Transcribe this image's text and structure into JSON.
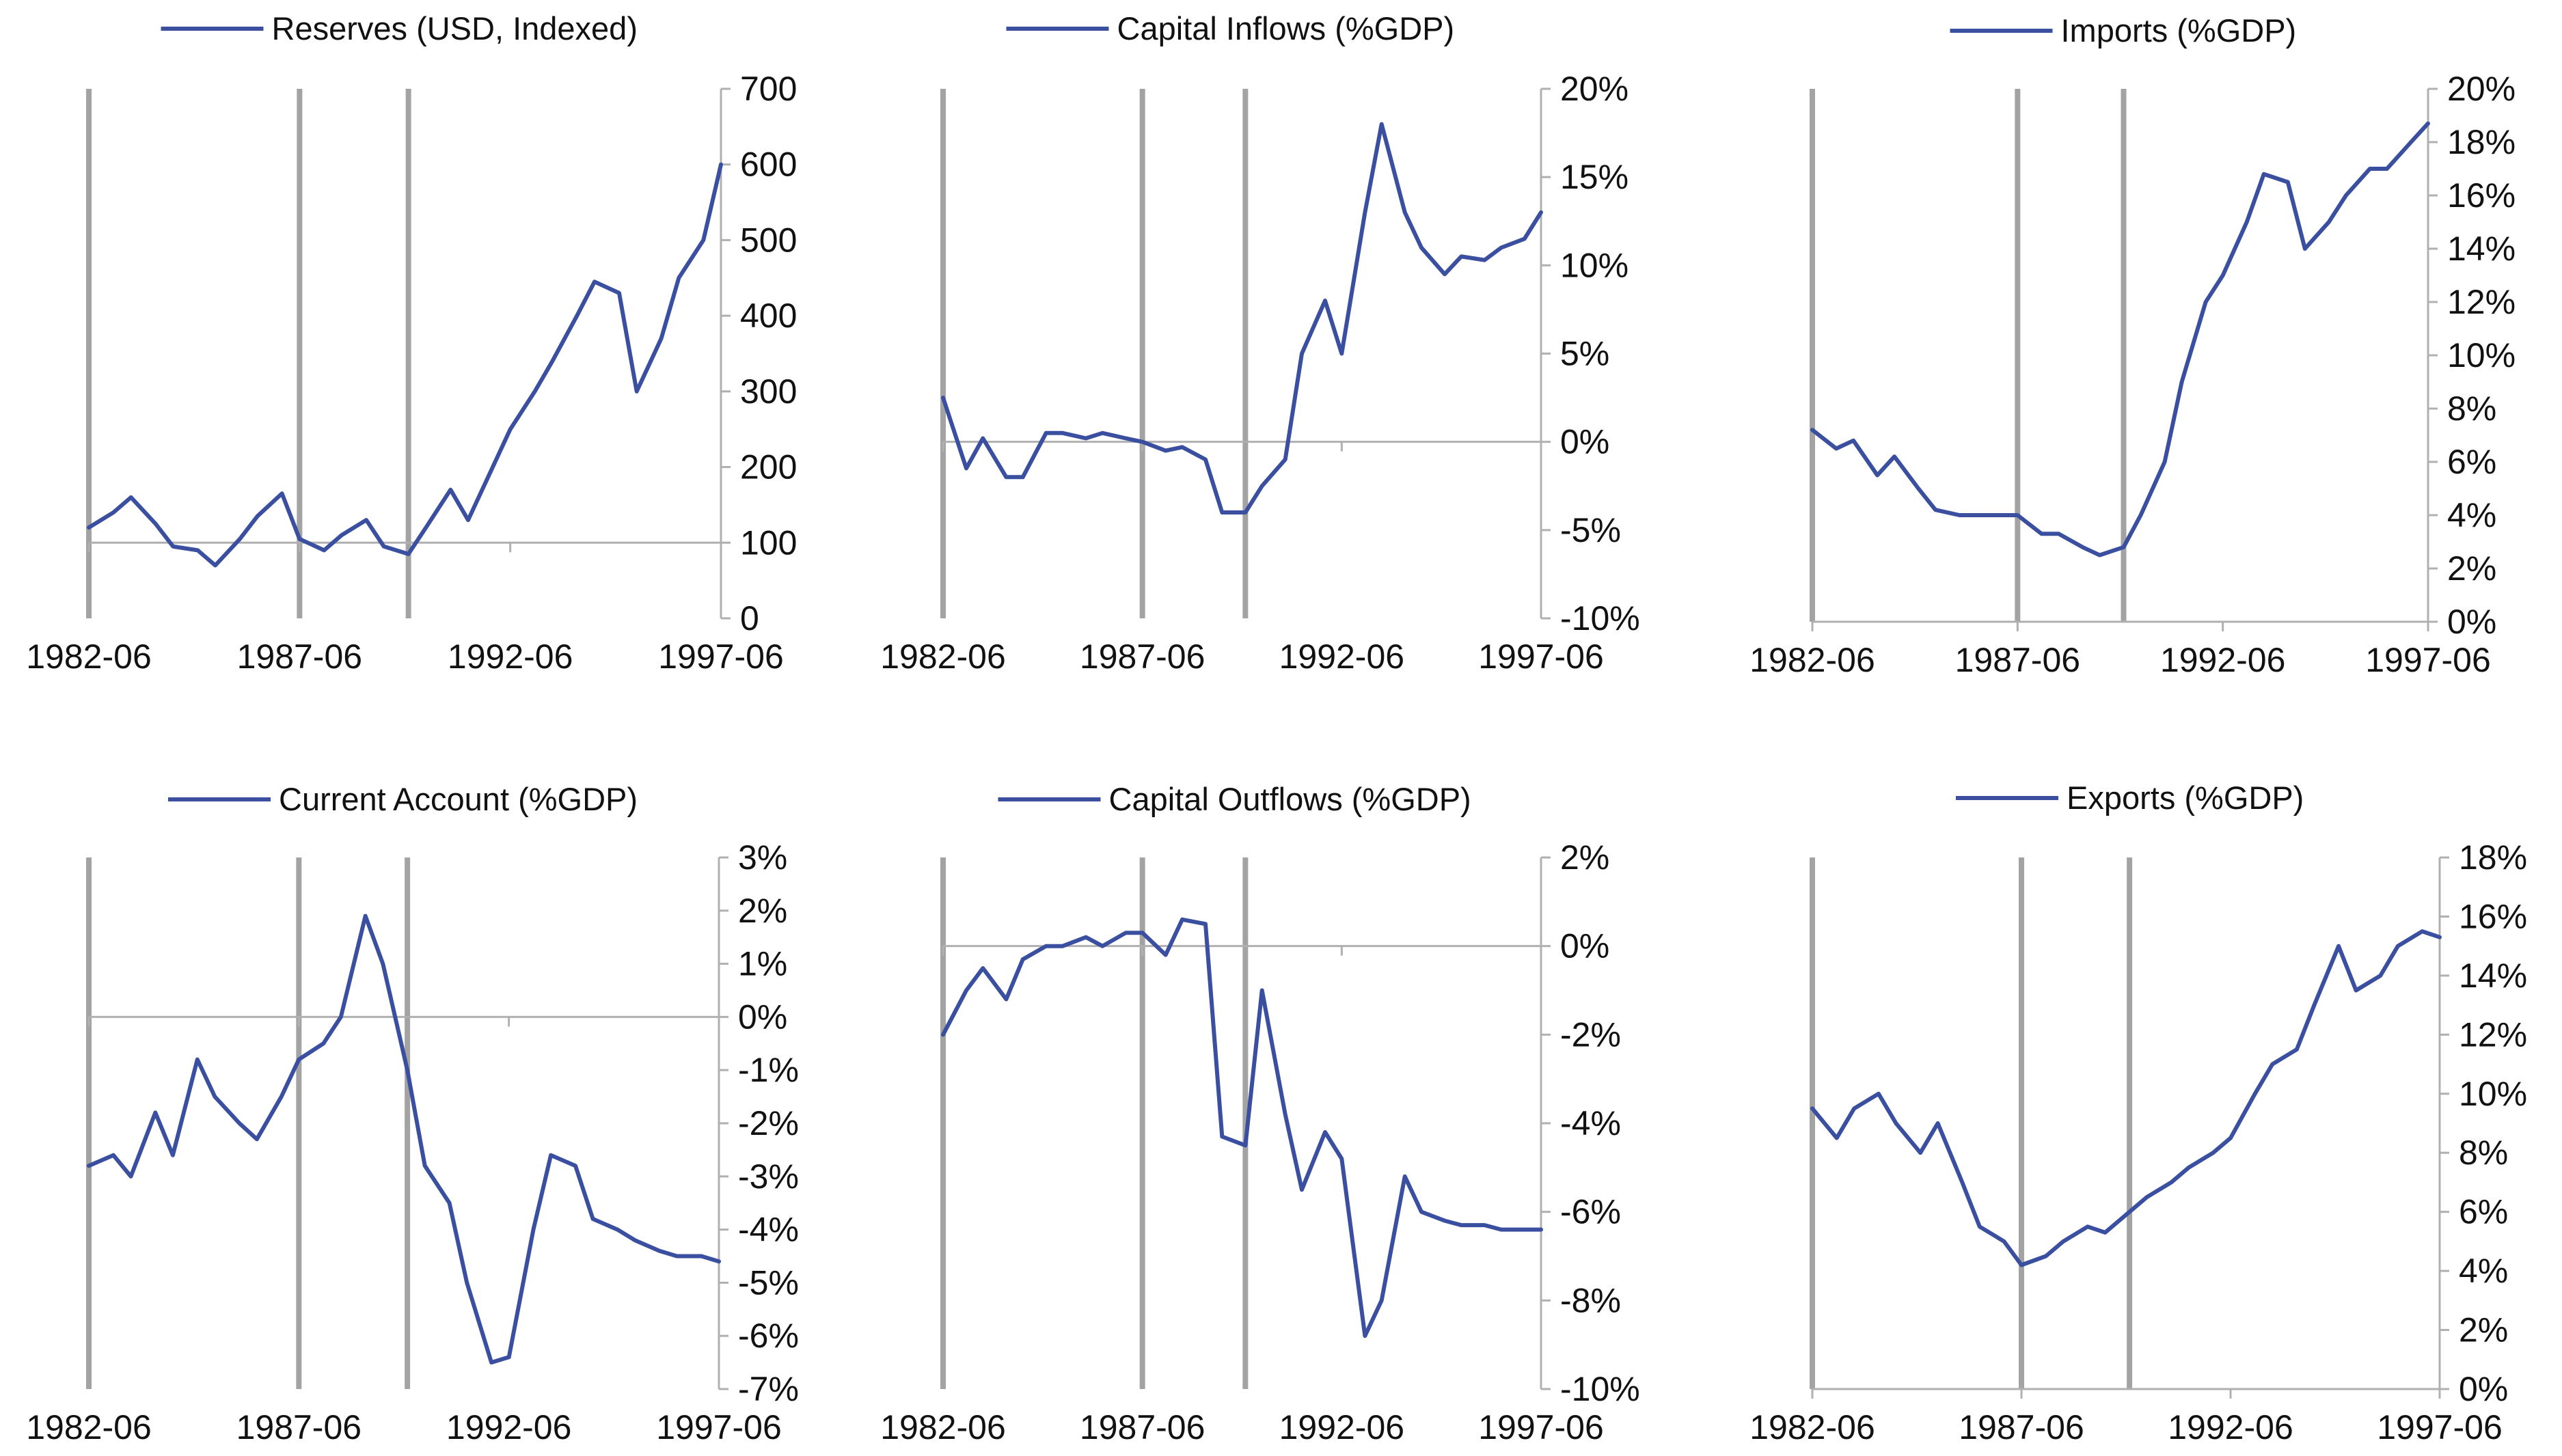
{
  "chart_data": [
    {
      "type": "line",
      "series": [
        {
          "name": "Reserves (USD, Indexed)",
          "x": [
            "1982-06",
            "1983-01",
            "1983-06",
            "1984-01",
            "1984-06",
            "1985-01",
            "1985-06",
            "1986-01",
            "1986-06",
            "1987-01",
            "1987-06",
            "1988-01",
            "1988-06",
            "1989-01",
            "1989-06",
            "1990-01",
            "1990-06",
            "1991-01",
            "1991-06",
            "1992-01",
            "1992-06",
            "1993-01",
            "1993-06",
            "1994-01",
            "1994-06",
            "1995-01",
            "1995-06",
            "1996-01",
            "1996-06",
            "1997-01",
            "1997-06"
          ],
          "values": [
            120,
            140,
            160,
            125,
            95,
            90,
            70,
            105,
            135,
            165,
            105,
            90,
            110,
            130,
            95,
            85,
            120,
            170,
            130,
            200,
            250,
            300,
            340,
            400,
            445,
            430,
            300,
            370,
            450,
            500,
            600
          ]
        }
      ],
      "ylim": [
        0,
        700
      ],
      "yticks": [
        "0",
        "100",
        "200",
        "300",
        "400",
        "500",
        "600",
        "700"
      ],
      "xtick_labels": [
        "1982-06",
        "1987-06",
        "1992-06",
        "1997-06"
      ],
      "vlines": [
        "1982-06",
        "1987-06",
        "1990-01"
      ],
      "reference_line": 100,
      "y_axis_position": "right",
      "legend_position": "top"
    },
    {
      "type": "line",
      "series": [
        {
          "name": "Capital Inflows (%GDP)",
          "x": [
            "1982-06",
            "1983-01",
            "1983-06",
            "1984-01",
            "1984-06",
            "1985-01",
            "1985-06",
            "1986-01",
            "1986-06",
            "1987-01",
            "1987-06",
            "1988-01",
            "1988-06",
            "1989-01",
            "1989-06",
            "1990-01",
            "1990-06",
            "1991-01",
            "1991-06",
            "1992-01",
            "1992-06",
            "1993-01",
            "1993-06",
            "1994-01",
            "1994-06",
            "1995-01",
            "1995-06",
            "1996-01",
            "1996-06",
            "1997-01",
            "1997-06"
          ],
          "values": [
            2.5,
            -1.5,
            0.2,
            -2,
            -2,
            0.5,
            0.5,
            0.2,
            0.5,
            0.2,
            0,
            -0.5,
            -0.3,
            -1,
            -4,
            -4,
            -2.5,
            -1,
            5,
            8,
            5,
            13,
            18,
            13,
            11,
            9.5,
            10.5,
            10.3,
            11,
            11.5,
            13
          ]
        }
      ],
      "ylim": [
        -10,
        20
      ],
      "yticks": [
        "-10%",
        "-5%",
        "0%",
        "5%",
        "10%",
        "15%",
        "20%"
      ],
      "xtick_labels": [
        "1982-06",
        "1987-06",
        "1992-06",
        "1997-06"
      ],
      "vlines": [
        "1982-06",
        "1987-06",
        "1990-01"
      ],
      "reference_line": 0,
      "y_axis_position": "right",
      "legend_position": "top"
    },
    {
      "type": "line",
      "series": [
        {
          "name": "Imports (%GDP)",
          "x": [
            "1982-06",
            "1983-01",
            "1983-06",
            "1984-01",
            "1984-06",
            "1985-01",
            "1985-06",
            "1986-01",
            "1986-06",
            "1987-01",
            "1987-06",
            "1988-01",
            "1988-06",
            "1989-01",
            "1989-06",
            "1990-01",
            "1990-06",
            "1991-01",
            "1991-06",
            "1992-01",
            "1992-06",
            "1993-01",
            "1993-06",
            "1994-01",
            "1994-06",
            "1995-01",
            "1995-06",
            "1996-01",
            "1996-06",
            "1997-01",
            "1997-06"
          ],
          "values": [
            7.2,
            6.5,
            6.8,
            5.5,
            6.2,
            5.0,
            4.2,
            4.0,
            4.0,
            4.0,
            4.0,
            3.3,
            3.3,
            2.8,
            2.5,
            2.8,
            4.0,
            6.0,
            9.0,
            12.0,
            13.0,
            15.0,
            16.8,
            16.5,
            14.0,
            15.0,
            16.0,
            17.0,
            17.0,
            18.0,
            18.7
          ]
        }
      ],
      "ylim": [
        0,
        20
      ],
      "yticks": [
        "0%",
        "2%",
        "4%",
        "6%",
        "8%",
        "10%",
        "12%",
        "14%",
        "16%",
        "18%",
        "20%"
      ],
      "xtick_labels": [
        "1982-06",
        "1987-06",
        "1992-06",
        "1997-06"
      ],
      "vlines": [
        "1982-06",
        "1987-06",
        "1990-01"
      ],
      "y_axis_position": "right",
      "legend_position": "top"
    },
    {
      "type": "line",
      "series": [
        {
          "name": "Current Account (%GDP)",
          "x": [
            "1982-06",
            "1983-01",
            "1983-06",
            "1984-01",
            "1984-06",
            "1985-01",
            "1985-06",
            "1986-01",
            "1986-06",
            "1987-01",
            "1987-06",
            "1988-01",
            "1988-06",
            "1989-01",
            "1989-06",
            "1990-01",
            "1990-06",
            "1991-01",
            "1991-06",
            "1992-01",
            "1992-06",
            "1993-01",
            "1993-06",
            "1994-01",
            "1994-06",
            "1995-01",
            "1995-06",
            "1996-01",
            "1996-06",
            "1997-01",
            "1997-06"
          ],
          "values": [
            -2.8,
            -2.6,
            -3.0,
            -1.8,
            -2.6,
            -0.8,
            -1.5,
            -2,
            -2.3,
            -1.5,
            -0.8,
            -0.5,
            0,
            1.9,
            1,
            -1,
            -2.8,
            -3.5,
            -5,
            -6.5,
            -6.4,
            -4,
            -2.6,
            -2.8,
            -3.8,
            -4.0,
            -4.2,
            -4.4,
            -4.5,
            -4.5,
            -4.6
          ]
        }
      ],
      "ylim": [
        -7,
        3
      ],
      "yticks": [
        "-7%",
        "-6%",
        "-5%",
        "-4%",
        "-3%",
        "-2%",
        "-1%",
        "0%",
        "1%",
        "2%",
        "3%"
      ],
      "xtick_labels": [
        "1982-06",
        "1987-06",
        "1992-06",
        "1997-06"
      ],
      "vlines": [
        "1982-06",
        "1987-06",
        "1990-01"
      ],
      "reference_line": 0,
      "y_axis_position": "right",
      "legend_position": "top"
    },
    {
      "type": "line",
      "series": [
        {
          "name": "Capital Outflows (%GDP)",
          "x": [
            "1982-06",
            "1983-01",
            "1983-06",
            "1984-01",
            "1984-06",
            "1985-01",
            "1985-06",
            "1986-01",
            "1986-06",
            "1987-01",
            "1987-06",
            "1988-01",
            "1988-06",
            "1989-01",
            "1989-06",
            "1990-01",
            "1990-06",
            "1991-01",
            "1991-06",
            "1992-01",
            "1992-06",
            "1993-01",
            "1993-06",
            "1994-01",
            "1994-06",
            "1995-01",
            "1995-06",
            "1996-01",
            "1996-06",
            "1997-01",
            "1997-06"
          ],
          "values": [
            -2,
            -1,
            -0.5,
            -1.2,
            -0.3,
            0,
            0,
            0.2,
            0,
            0.3,
            0.3,
            -0.2,
            0.6,
            0.5,
            -4.3,
            -4.5,
            -1,
            -3.8,
            -5.5,
            -4.2,
            -4.8,
            -8.8,
            -8.0,
            -5.2,
            -6.0,
            -6.2,
            -6.3,
            -6.3,
            -6.4,
            -6.4,
            -6.4
          ]
        }
      ],
      "ylim": [
        -10,
        2
      ],
      "yticks": [
        "-10%",
        "-8%",
        "-6%",
        "-4%",
        "-2%",
        "0%",
        "2%"
      ],
      "xtick_labels": [
        "1982-06",
        "1987-06",
        "1992-06",
        "1997-06"
      ],
      "vlines": [
        "1982-06",
        "1987-06",
        "1990-01"
      ],
      "reference_line": 0,
      "y_axis_position": "right",
      "legend_position": "top"
    },
    {
      "type": "line",
      "series": [
        {
          "name": "Exports (%GDP)",
          "x": [
            "1982-06",
            "1983-01",
            "1983-06",
            "1984-01",
            "1984-06",
            "1985-01",
            "1985-06",
            "1986-01",
            "1986-06",
            "1987-01",
            "1987-06",
            "1988-01",
            "1988-06",
            "1989-01",
            "1989-06",
            "1990-01",
            "1990-06",
            "1991-01",
            "1991-06",
            "1992-01",
            "1992-06",
            "1993-01",
            "1993-06",
            "1994-01",
            "1994-06",
            "1995-01",
            "1995-06",
            "1996-01",
            "1996-06",
            "1997-01",
            "1997-06"
          ],
          "values": [
            9.5,
            8.5,
            9.5,
            10,
            9,
            8,
            9,
            7,
            5.5,
            5,
            4.2,
            4.5,
            5,
            5.5,
            5.3,
            6,
            6.5,
            7,
            7.5,
            8,
            8.5,
            10,
            11,
            11.5,
            13,
            15,
            13.5,
            14,
            15,
            15.5,
            15.3
          ]
        }
      ],
      "ylim": [
        0,
        18
      ],
      "yticks": [
        "0%",
        "2%",
        "4%",
        "6%",
        "8%",
        "10%",
        "12%",
        "14%",
        "16%",
        "18%"
      ],
      "xtick_labels": [
        "1982-06",
        "1987-06",
        "1992-06",
        "1997-06"
      ],
      "vlines": [
        "1982-06",
        "1987-06",
        "1990-01"
      ],
      "y_axis_position": "right",
      "legend_position": "top"
    }
  ],
  "colors": {
    "line": "#3a4fa0",
    "vline": "#a3a3a3",
    "axis": "#b0b0b0",
    "text": "#111111"
  }
}
